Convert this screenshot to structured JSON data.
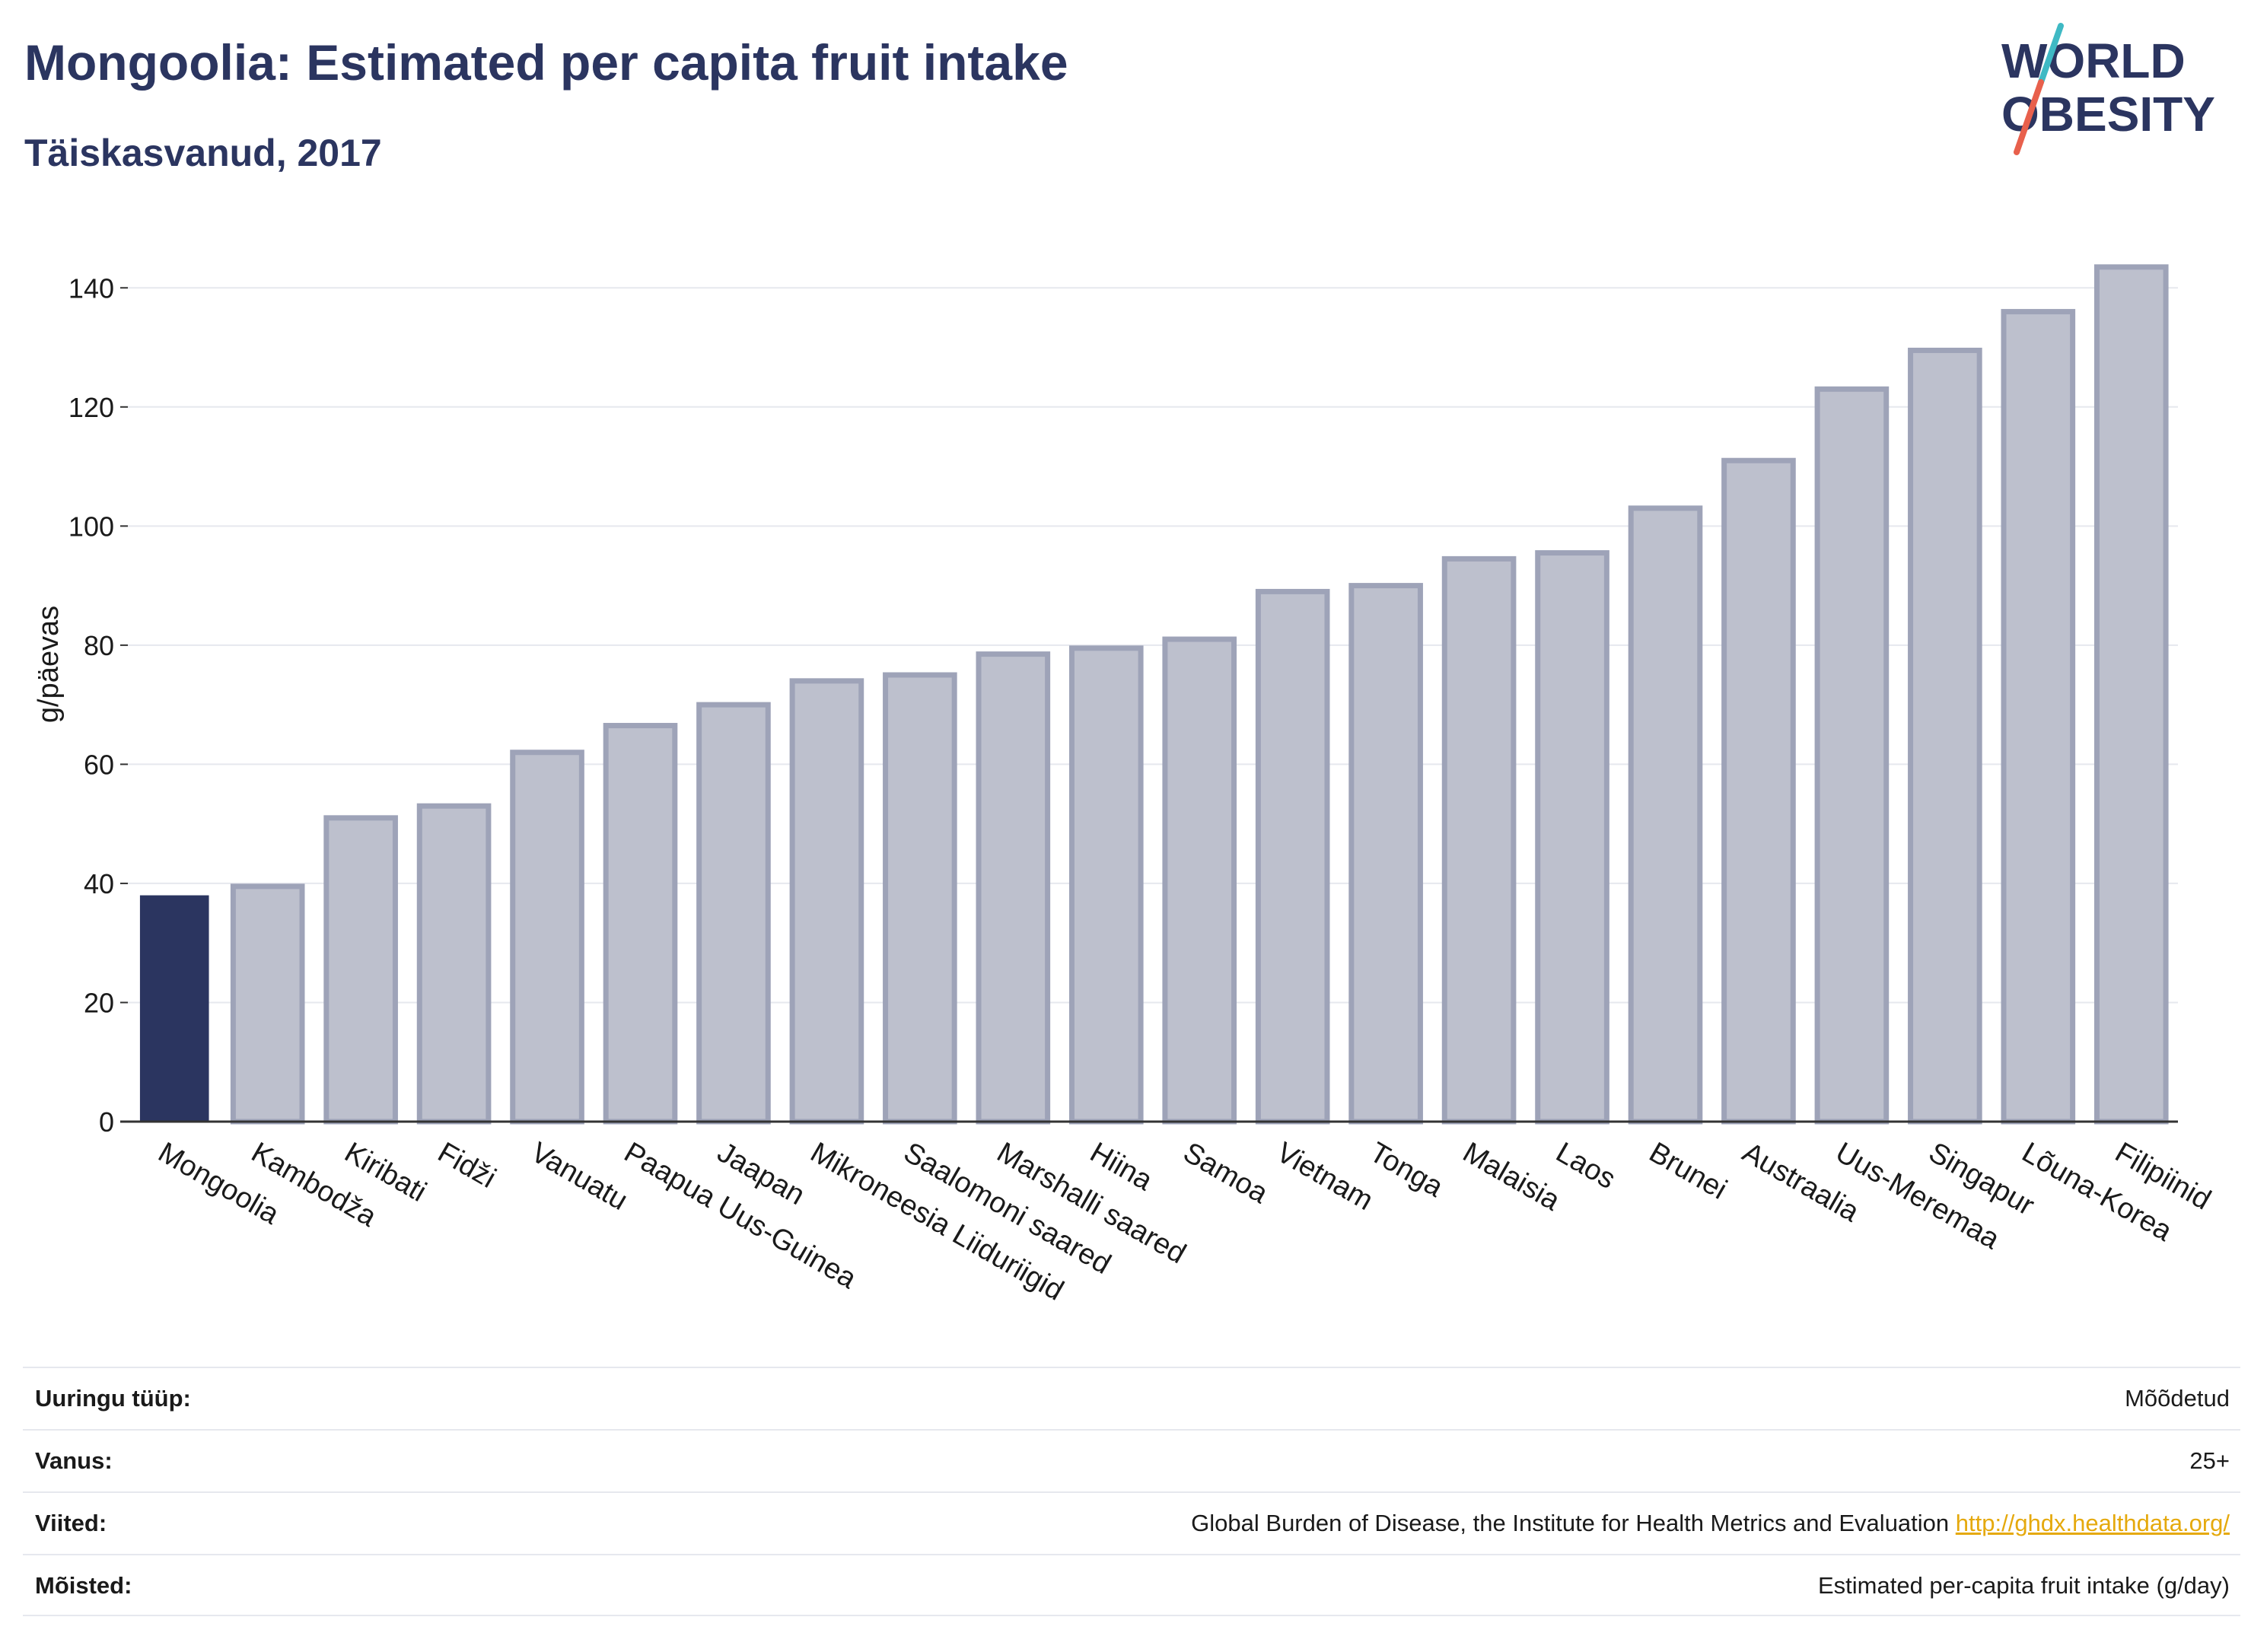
{
  "header": {
    "title": "Mongoolia: Estimated per capita fruit intake",
    "subtitle": "Täiskasvanud, 2017"
  },
  "logo": {
    "line1": "WORLD",
    "line2": "OBESITY",
    "colors": {
      "text": "#2b3560",
      "slash_teal": "#3fb9c4",
      "slash_red": "#e8604c"
    }
  },
  "chart_data": {
    "type": "bar",
    "title": "Mongoolia: Estimated per capita fruit intake",
    "subtitle": "Täiskasvanud, 2017",
    "xlabel": "",
    "ylabel": "g/päevas",
    "ylim": [
      0,
      150
    ],
    "yticks": [
      0,
      20,
      40,
      60,
      80,
      100,
      120,
      140
    ],
    "grid": true,
    "highlight": "Mongoolia",
    "colors": {
      "highlight": "#2b3560",
      "bar_fill": "#bdc0cd",
      "bar_stroke": "#9ea3b8",
      "grid": "#e6e8ee",
      "axis": "#333333"
    },
    "categories": [
      "Mongoolia",
      "Kambodža",
      "Kiribati",
      "Fidži",
      "Vanuatu",
      "Paapua Uus-Guinea",
      "Jaapan",
      "Mikroneesia Liiduriigid",
      "Saalomoni saared",
      "Marshalli saared",
      "Hiina",
      "Samoa",
      "Vietnam",
      "Tonga",
      "Malaisia",
      "Laos",
      "Brunei",
      "Austraalia",
      "Uus-Meremaa",
      "Singapur",
      "Lõuna-Korea",
      "Filipiinid"
    ],
    "values": [
      38,
      39.5,
      51,
      53,
      62,
      66.5,
      70,
      74,
      75,
      78.5,
      79.5,
      81,
      89,
      90,
      94.5,
      95.5,
      103,
      111,
      123,
      129.5,
      136,
      143.5
    ]
  },
  "footer": {
    "rows": [
      {
        "label": "Uuringu tüüp:",
        "value": "Mõõdetud"
      },
      {
        "label": "Vanus:",
        "value": "25+"
      },
      {
        "label": "Viited:",
        "value": "Global Burden of Disease, the Institute for Health Metrics and Evaluation",
        "link": "http://ghdx.healthdata.org/"
      },
      {
        "label": "Mõisted:",
        "value": "Estimated per-capita fruit intake (g/day)"
      }
    ]
  }
}
